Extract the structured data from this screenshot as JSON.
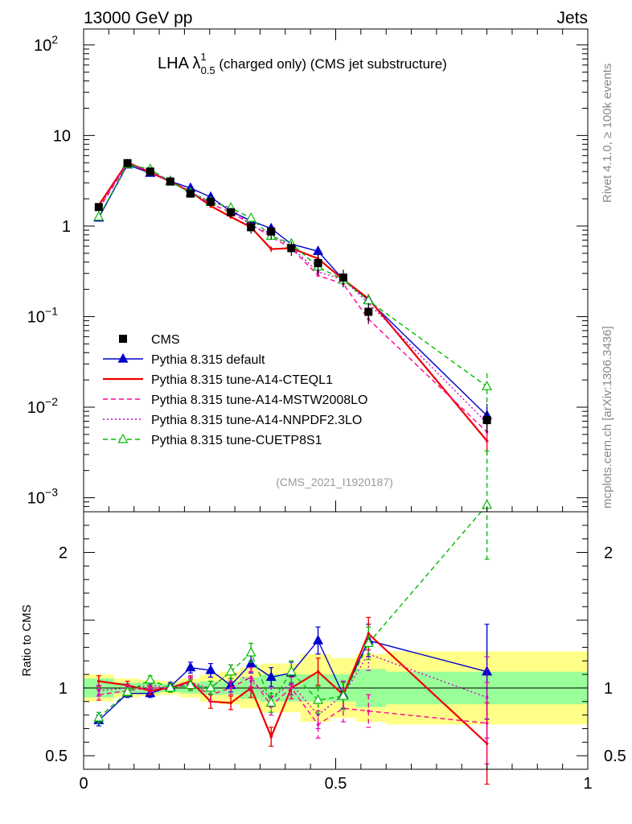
{
  "header": {
    "left": "13000 GeV pp",
    "right": "Jets"
  },
  "title": {
    "main": "LHA λ",
    "sup": "1",
    "sub": "0.5",
    "rest": " (charged only) (CMS jet substructure)"
  },
  "side_text": {
    "top": "Rivet 4.1.0, ≥ 100k events",
    "bottom": "mcplots.cern.ch [arXiv:1306.3436]"
  },
  "analysis_tag": "(CMS_2021_I1920187)",
  "ratio_ylabel": "Ratio to CMS",
  "main_yticks": [
    {
      "v": 0.001,
      "base": "10",
      "exp": "−3"
    },
    {
      "v": 0.01,
      "base": "10",
      "exp": "−2"
    },
    {
      "v": 0.1,
      "base": "10",
      "exp": "−1"
    },
    {
      "v": 1,
      "base": "1",
      "exp": ""
    },
    {
      "v": 10,
      "base": "10",
      "exp": ""
    },
    {
      "v": 100,
      "base": "10",
      "exp": "2"
    }
  ],
  "ratio_yticks": [
    {
      "v": 0.5,
      "label": "0.5"
    },
    {
      "v": 1,
      "label": "1"
    },
    {
      "v": 2,
      "label": "2"
    }
  ],
  "xticks": [
    {
      "v": 0,
      "label": "0"
    },
    {
      "v": 0.5,
      "label": "0.5"
    },
    {
      "v": 1,
      "label": "1"
    }
  ],
  "chart_data": {
    "type": "line",
    "xlim": [
      0,
      1
    ],
    "ylim_main": [
      0.0007,
      150
    ],
    "yscale_main": "log",
    "ylim_ratio": [
      0.4,
      2.3
    ],
    "x": [
      0.03,
      0.087,
      0.132,
      0.172,
      0.212,
      0.252,
      0.292,
      0.332,
      0.372,
      0.412,
      0.465,
      0.515,
      0.565,
      0.8
    ],
    "bin_edges": [
      0.0,
      0.06,
      0.11,
      0.15,
      0.19,
      0.23,
      0.27,
      0.31,
      0.35,
      0.39,
      0.43,
      0.49,
      0.54,
      0.6,
      1.0
    ],
    "cms": {
      "name": "CMS",
      "values": [
        1.62,
        4.95,
        4.0,
        3.1,
        2.28,
        1.85,
        1.42,
        0.97,
        0.87,
        0.57,
        0.39,
        0.27,
        0.113,
        0.0072
      ],
      "band_inner": [
        0.07,
        0.04,
        0.04,
        0.03,
        0.04,
        0.05,
        0.05,
        0.08,
        0.1,
        0.1,
        0.1,
        0.1,
        0.14,
        0.12
      ],
      "band_outer": [
        0.1,
        0.07,
        0.06,
        0.05,
        0.07,
        0.1,
        0.12,
        0.15,
        0.18,
        0.18,
        0.25,
        0.22,
        0.25,
        0.27
      ]
    },
    "series": [
      {
        "name": "Pythia 8.315 default",
        "color": "#0000cc",
        "style": "solid",
        "marker": "triangle",
        "ratio": [
          0.76,
          0.96,
          0.96,
          1.01,
          1.15,
          1.13,
          1.02,
          1.18,
          1.08,
          1.11,
          1.35,
          0.95,
          1.35,
          1.12
        ],
        "err": [
          0.04,
          0.03,
          0.03,
          0.03,
          0.04,
          0.05,
          0.05,
          0.07,
          0.07,
          0.08,
          0.1,
          0.1,
          0.12,
          0.35
        ]
      },
      {
        "name": "Pythia 8.315 tune-A14-CTEQL1",
        "color": "#ee0000",
        "style": "solid",
        "marker": "none",
        "ratio": [
          1.05,
          1.02,
          0.98,
          1.0,
          1.05,
          0.9,
          0.89,
          1.0,
          0.64,
          1.0,
          1.12,
          0.95,
          1.4,
          0.59
        ],
        "err": [
          0.04,
          0.03,
          0.03,
          0.03,
          0.04,
          0.05,
          0.05,
          0.07,
          0.07,
          0.08,
          0.1,
          0.1,
          0.12,
          0.3
        ]
      },
      {
        "name": "Pythia 8.315 tune-A14-MSTW2008LO",
        "color": "#ff0099",
        "style": "dashed",
        "marker": "none",
        "ratio": [
          0.95,
          0.98,
          1.0,
          1.0,
          1.03,
          0.95,
          1.0,
          1.08,
          0.87,
          1.0,
          0.73,
          0.85,
          0.83,
          0.74
        ],
        "err": [
          0.04,
          0.03,
          0.03,
          0.03,
          0.04,
          0.05,
          0.05,
          0.07,
          0.07,
          0.08,
          0.1,
          0.1,
          0.12,
          0.3
        ]
      },
      {
        "name": "Pythia 8.315 tune-A14-NNPDF2.3LO",
        "color": "#cc00cc",
        "style": "dotted",
        "marker": "none",
        "ratio": [
          0.98,
          1.0,
          1.02,
          1.0,
          1.04,
          1.0,
          1.12,
          1.05,
          0.93,
          1.03,
          0.8,
          0.95,
          1.25,
          0.93
        ],
        "err": [
          0.04,
          0.03,
          0.03,
          0.03,
          0.04,
          0.05,
          0.05,
          0.07,
          0.07,
          0.08,
          0.1,
          0.1,
          0.12,
          0.3
        ]
      },
      {
        "name": "Pythia 8.315 tune-CUETP8S1",
        "color": "#00bb00",
        "style": "dashed",
        "marker": "open-triangle",
        "ratio": [
          0.78,
          0.97,
          1.06,
          1.0,
          1.02,
          1.0,
          1.12,
          1.26,
          0.89,
          1.12,
          0.91,
          0.94,
          1.33,
          2.35
        ],
        "err": [
          0.04,
          0.03,
          0.03,
          0.03,
          0.04,
          0.05,
          0.05,
          0.07,
          0.07,
          0.08,
          0.1,
          0.1,
          0.12,
          0.4
        ]
      }
    ]
  }
}
